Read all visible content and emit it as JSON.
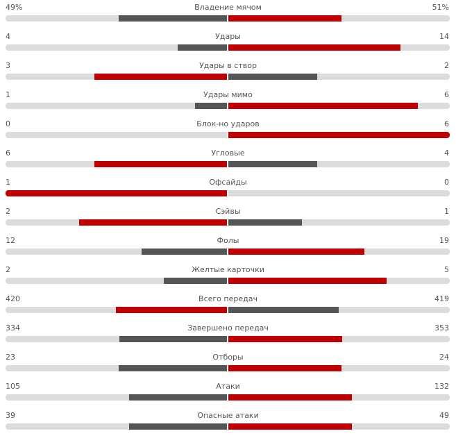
{
  "colors": {
    "winner": "#c00000",
    "loser": "#555555",
    "track": "#dcdcdc"
  },
  "stats": [
    {
      "name": "Владение мячом",
      "home": "49%",
      "away": "51%",
      "home_value": 49,
      "away_value": 51,
      "max": 100
    },
    {
      "name": "Удары",
      "home": "4",
      "away": "14",
      "home_value": 4,
      "away_value": 14,
      "max": 18
    },
    {
      "name": "Удары в створ",
      "home": "3",
      "away": "2",
      "home_value": 3,
      "away_value": 2,
      "max": 5
    },
    {
      "name": "Удары мимо",
      "home": "1",
      "away": "6",
      "home_value": 1,
      "away_value": 6,
      "max": 7
    },
    {
      "name": "Блок-но ударов",
      "home": "0",
      "away": "6",
      "home_value": 0,
      "away_value": 6,
      "max": 6
    },
    {
      "name": "Угловые",
      "home": "6",
      "away": "4",
      "home_value": 6,
      "away_value": 4,
      "max": 10
    },
    {
      "name": "Офсайды",
      "home": "1",
      "away": "0",
      "home_value": 1,
      "away_value": 0,
      "max": 1
    },
    {
      "name": "Сэйвы",
      "home": "2",
      "away": "1",
      "home_value": 2,
      "away_value": 1,
      "max": 3
    },
    {
      "name": "Фолы",
      "home": "12",
      "away": "19",
      "home_value": 12,
      "away_value": 19,
      "max": 31
    },
    {
      "name": "Желтые карточки",
      "home": "2",
      "away": "5",
      "home_value": 2,
      "away_value": 5,
      "max": 7
    },
    {
      "name": "Всего передач",
      "home": "420",
      "away": "419",
      "home_value": 420,
      "away_value": 419,
      "max": 839
    },
    {
      "name": "Завершено передач",
      "home": "334",
      "away": "353",
      "home_value": 334,
      "away_value": 353,
      "max": 687
    },
    {
      "name": "Отборы",
      "home": "23",
      "away": "24",
      "home_value": 23,
      "away_value": 24,
      "max": 47
    },
    {
      "name": "Атаки",
      "home": "105",
      "away": "132",
      "home_value": 105,
      "away_value": 132,
      "max": 237
    },
    {
      "name": "Опасные атаки",
      "home": "39",
      "away": "49",
      "home_value": 39,
      "away_value": 49,
      "max": 88
    }
  ]
}
